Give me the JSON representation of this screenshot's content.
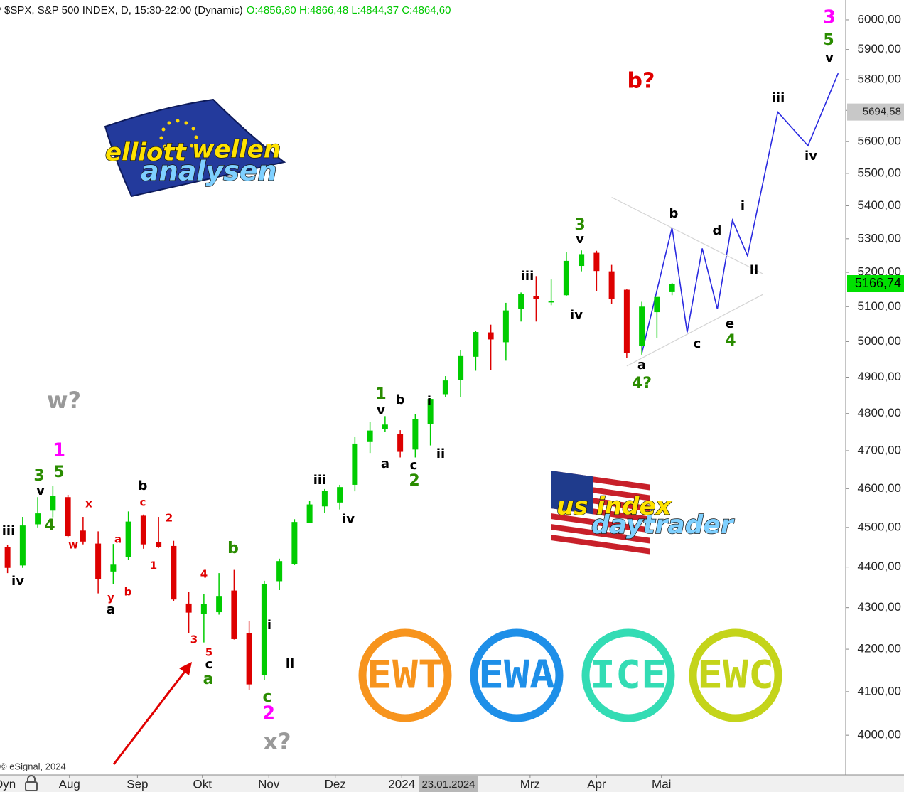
{
  "header": {
    "symbol": "* $SPX, S&P 500 INDEX, D, 15:30-22:00 (Dynamic)",
    "ohlc": "O:4856,80 H:4866,48 L:4844,37 C:4864,60"
  },
  "copyright": "© eSignal, 2024",
  "dyn": "Dyn",
  "cursor_date": "23.01.2024",
  "logos": {
    "ew_line1": "elliott",
    "ew_line2": "wellen",
    "ew_line3": "analysen",
    "us_line1": "us index",
    "us_line2": "daytrader"
  },
  "badges": [
    {
      "text": "EWT",
      "color": "#f7941d"
    },
    {
      "text": "EWA",
      "color": "#1e8fe8"
    },
    {
      "text": "ICE",
      "color": "#33dcb4"
    },
    {
      "text": "EWC",
      "color": "#c4d41a"
    }
  ],
  "chart_data": {
    "type": "candlestick",
    "log": true,
    "up_color": "#00cc00",
    "down_color": "#dd0000",
    "xlim": [
      -0.5,
      55.5
    ],
    "xticks": [
      {
        "value": 4.1,
        "label": "Aug"
      },
      {
        "value": 8.6,
        "label": "Sep"
      },
      {
        "value": 12.9,
        "label": "Okt"
      },
      {
        "value": 17.3,
        "label": "Nov"
      },
      {
        "value": 21.7,
        "label": "Dez"
      },
      {
        "value": 26.1,
        "label": "2024"
      },
      {
        "value": 34.6,
        "label": "Mrz"
      },
      {
        "value": 39,
        "label": "Apr"
      },
      {
        "value": 43.3,
        "label": "Mai"
      }
    ],
    "ylim": [
      3911,
      6068
    ],
    "yticks": [
      {
        "value": 4000,
        "label": "4000,00"
      },
      {
        "value": 4100,
        "label": "4100,00"
      },
      {
        "value": 4200,
        "label": "4200,00"
      },
      {
        "value": 4300,
        "label": "4300,00"
      },
      {
        "value": 4400,
        "label": "4400,00"
      },
      {
        "value": 4500,
        "label": "4500,00"
      },
      {
        "value": 4600,
        "label": "4600,00"
      },
      {
        "value": 4700,
        "label": "4700,00"
      },
      {
        "value": 4800,
        "label": "4800,00"
      },
      {
        "value": 4900,
        "label": "4900,00"
      },
      {
        "value": 5000,
        "label": "5000,00"
      },
      {
        "value": 5100,
        "label": "5100,00"
      },
      {
        "value": 5200,
        "label": "5200,00"
      },
      {
        "value": 5300,
        "label": "5300,00"
      },
      {
        "value": 5400,
        "label": "5400,00"
      },
      {
        "value": 5500,
        "label": "5500,00"
      },
      {
        "value": 5600,
        "label": "5600,00"
      },
      {
        "value": 5700,
        "label": "5700,00"
      },
      {
        "value": 5800,
        "label": "5800,00"
      },
      {
        "value": 5900,
        "label": "5900,00"
      },
      {
        "value": 6000,
        "label": "6000,00"
      }
    ],
    "x": [
      0,
      1,
      2,
      3,
      4,
      5,
      6,
      7,
      8,
      9,
      10,
      11,
      12,
      13,
      14,
      15,
      16,
      17,
      18,
      19,
      20,
      21,
      22,
      23,
      24,
      25,
      26,
      27,
      28,
      29,
      30,
      31,
      32,
      33,
      34,
      35,
      36,
      37,
      38,
      39,
      40,
      41,
      42,
      43,
      44
    ],
    "open": [
      4450,
      4404,
      4508,
      4543,
      4578,
      4492,
      4459,
      4389,
      4426,
      4530,
      4463,
      4453,
      4310,
      4284,
      4289,
      4342,
      4238,
      4139,
      4365,
      4407,
      4511,
      4554,
      4564,
      4610,
      4725,
      4758,
      4745,
      4703,
      4772,
      4853,
      4892,
      4957,
      5026,
      4998,
      5094,
      5131,
      5112,
      5133,
      5219,
      5258,
      5203,
      5149,
      4988,
      5084,
      5142
    ],
    "high": [
      4456,
      4527,
      4578,
      4607,
      4584,
      4527,
      4490,
      4458,
      4541,
      4533,
      4527,
      4466,
      4338,
      4333,
      4385,
      4393,
      4268,
      4366,
      4421,
      4521,
      4568,
      4599,
      4610,
      4738,
      4778,
      4793,
      4755,
      4798,
      4842,
      4903,
      4975,
      5030,
      5048,
      5111,
      5141,
      5189,
      5179,
      5261,
      5265,
      5264,
      5222,
      5150,
      5114,
      5123,
      5169
    ],
    "low": [
      4385,
      4398,
      4500,
      4526,
      4474,
      4457,
      4335,
      4357,
      4418,
      4446,
      4448,
      4316,
      4238,
      4216,
      4283,
      4223,
      4104,
      4128,
      4343,
      4405,
      4511,
      4537,
      4546,
      4593,
      4694,
      4751,
      4682,
      4682,
      4714,
      4845,
      4845,
      4918,
      4920,
      4946,
      5057,
      5057,
      5104,
      5131,
      5203,
      5146,
      5107,
      4954,
      4963,
      5011,
      5133
    ],
    "close": [
      4398,
      4505,
      4536,
      4582,
      4478,
      4464,
      4370,
      4406,
      4515,
      4457,
      4450,
      4320,
      4288,
      4309,
      4327,
      4224,
      4117,
      4358,
      4415,
      4514,
      4559,
      4595,
      4604,
      4719,
      4754,
      4770,
      4697,
      4784,
      4840,
      4891,
      4959,
      5027,
      5006,
      5089,
      5137,
      5123,
      5117,
      5234,
      5254,
      5204,
      5123,
      4967,
      5100,
      5128,
      5166.74
    ],
    "lines": [
      {
        "color": "#2a2ae0",
        "x": [
          42,
          44,
          45,
          46,
          47,
          48,
          49,
          51,
          53,
          55
        ],
        "values": [
          4967,
          5334,
          5026,
          5271,
          5093,
          5356,
          5249,
          5694.58,
          5587,
          5821
        ]
      },
      {
        "color": "#d4d4d4",
        "x": [
          40,
          50
        ],
        "values": [
          5426,
          5196
        ]
      },
      {
        "color": "#d4d4d4",
        "x": [
          41,
          50
        ],
        "values": [
          4931,
          5135
        ]
      }
    ],
    "price_markers": [
      {
        "value": 5694.58,
        "label": "5694,58",
        "color": "#c8c8c8",
        "text_color": "#222222"
      },
      {
        "value": 5166.74,
        "label": "5166,74",
        "color": "#00e000",
        "text_color": "#000000"
      }
    ],
    "annotations": [
      {
        "text": "iii",
        "color": "#000000"
      },
      {
        "text": "iv",
        "color": "#000000"
      },
      {
        "text": "3",
        "color": "#2a8c00"
      },
      {
        "text": "v",
        "color": "#000000"
      },
      {
        "text": "5",
        "color": "#2a8c00"
      },
      {
        "text": "1",
        "color": "#ff00ff"
      },
      {
        "text": "4",
        "color": "#2a8c00"
      },
      {
        "text": "w?",
        "color": "#999999"
      },
      {
        "text": "x",
        "color": "#e00000"
      },
      {
        "text": "w",
        "color": "#e00000"
      },
      {
        "text": "b",
        "color": "#000000"
      },
      {
        "text": "c",
        "color": "#e00000"
      },
      {
        "text": "2",
        "color": "#e00000"
      },
      {
        "text": "a",
        "color": "#e00000"
      },
      {
        "text": "1",
        "color": "#e00000"
      },
      {
        "text": "y",
        "color": "#e00000"
      },
      {
        "text": "b",
        "color": "#e00000"
      },
      {
        "text": "a",
        "color": "#000000"
      },
      {
        "text": "4",
        "color": "#e00000"
      },
      {
        "text": "3",
        "color": "#e00000"
      },
      {
        "text": "5",
        "color": "#e00000"
      },
      {
        "text": "c",
        "color": "#000000"
      },
      {
        "text": "a",
        "color": "#2a8c00"
      },
      {
        "text": "b",
        "color": "#2a8c00"
      },
      {
        "text": "i",
        "color": "#000000"
      },
      {
        "text": "ii",
        "color": "#000000"
      },
      {
        "text": "c",
        "color": "#2a8c00"
      },
      {
        "text": "2",
        "color": "#ff00ff"
      },
      {
        "text": "x?",
        "color": "#999999"
      },
      {
        "text": "iii",
        "color": "#000000"
      },
      {
        "text": "iv",
        "color": "#000000"
      },
      {
        "text": "1",
        "color": "#2a8c00"
      },
      {
        "text": "v",
        "color": "#000000"
      },
      {
        "text": "b",
        "color": "#000000"
      },
      {
        "text": "i",
        "color": "#000000"
      },
      {
        "text": "a",
        "color": "#000000"
      },
      {
        "text": "c",
        "color": "#000000"
      },
      {
        "text": "2",
        "color": "#2a8c00"
      },
      {
        "text": "ii",
        "color": "#000000"
      },
      {
        "text": "iii",
        "color": "#000000"
      },
      {
        "text": "3",
        "color": "#2a8c00"
      },
      {
        "text": "v",
        "color": "#000000"
      },
      {
        "text": "iv",
        "color": "#000000"
      },
      {
        "text": "b?",
        "color": "#e00000"
      },
      {
        "text": "b",
        "color": "#000000"
      },
      {
        "text": "d",
        "color": "#000000"
      },
      {
        "text": "i",
        "color": "#000000"
      },
      {
        "text": "ii",
        "color": "#000000"
      },
      {
        "text": "e",
        "color": "#000000"
      },
      {
        "text": "4",
        "color": "#2a8c00"
      },
      {
        "text": "c",
        "color": "#000000"
      },
      {
        "text": "a",
        "color": "#000000"
      },
      {
        "text": "4?",
        "color": "#2a8c00"
      },
      {
        "text": "iii",
        "color": "#000000"
      },
      {
        "text": "iv",
        "color": "#000000"
      },
      {
        "text": "3",
        "color": "#ff00ff"
      },
      {
        "text": "5",
        "color": "#2a8c00"
      },
      {
        "text": "v",
        "color": "#000000"
      }
    ]
  }
}
